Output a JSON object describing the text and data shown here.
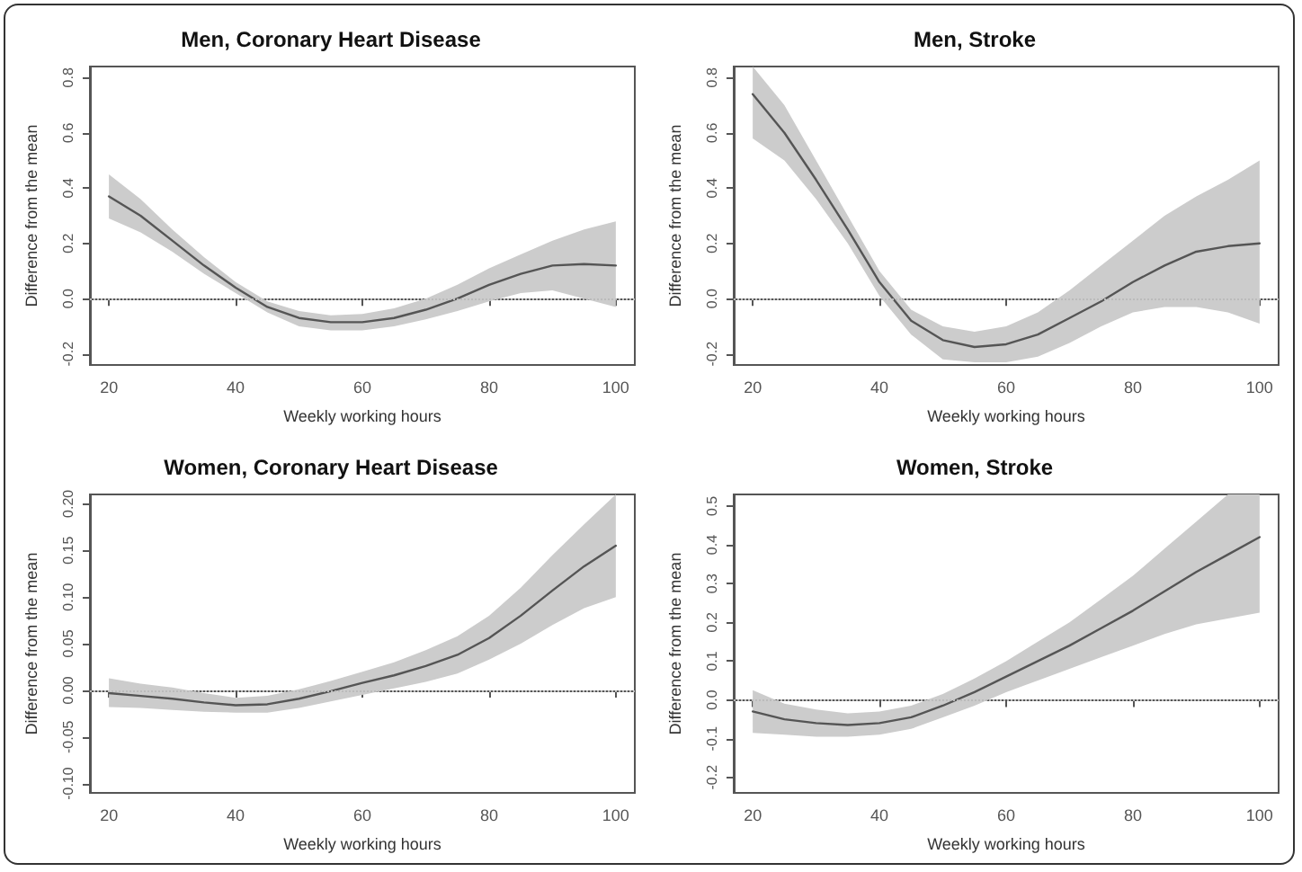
{
  "chart_data": [
    {
      "type": "line",
      "title": "Men, Coronary Heart Disease",
      "xlabel": "Weekly working hours",
      "ylabel": "Difference from the mean",
      "xlim": [
        17,
        103
      ],
      "xticks": [
        20,
        40,
        60,
        80,
        100
      ],
      "ylim": [
        -0.24,
        0.84
      ],
      "yticks": [
        {
          "value": -0.2,
          "label": "-0.2"
        },
        {
          "value": 0,
          "label": "0.0"
        },
        {
          "value": 0.2,
          "label": "0.2"
        },
        {
          "value": 0.4,
          "label": "0.4"
        },
        {
          "value": 0.6,
          "label": "0.6"
        },
        {
          "value": 0.8,
          "label": "0.8"
        }
      ],
      "x": [
        20,
        25,
        30,
        35,
        40,
        45,
        50,
        55,
        60,
        65,
        70,
        75,
        80,
        85,
        90,
        95,
        100
      ],
      "series": [
        {
          "color": "#555555",
          "values": [
            0.37,
            0.3,
            0.21,
            0.12,
            0.04,
            -0.03,
            -0.07,
            -0.085,
            -0.085,
            -0.07,
            -0.04,
            0.0,
            0.05,
            0.09,
            0.12,
            0.125,
            0.12
          ],
          "lower": [
            0.29,
            0.24,
            0.17,
            0.09,
            0.02,
            -0.05,
            -0.1,
            -0.115,
            -0.115,
            -0.1,
            -0.075,
            -0.045,
            -0.01,
            0.02,
            0.03,
            0.0,
            -0.03
          ],
          "upper": [
            0.45,
            0.36,
            0.25,
            0.15,
            0.06,
            -0.01,
            -0.045,
            -0.06,
            -0.055,
            -0.035,
            0.0,
            0.05,
            0.11,
            0.16,
            0.21,
            0.25,
            0.28
          ]
        }
      ],
      "ref_lines": [
        {
          "axis": "y",
          "value": 0,
          "color": "#bbbbbb",
          "line_style": "dotted"
        }
      ]
    },
    {
      "type": "line",
      "title": "Men, Stroke",
      "xlabel": "Weekly working hours",
      "ylabel": "Difference from the mean",
      "xlim": [
        17,
        103
      ],
      "xticks": [
        20,
        40,
        60,
        80,
        100
      ],
      "ylim": [
        -0.24,
        0.84
      ],
      "yticks": [
        {
          "value": -0.2,
          "label": "-0.2"
        },
        {
          "value": 0,
          "label": "0.0"
        },
        {
          "value": 0.2,
          "label": "0.2"
        },
        {
          "value": 0.4,
          "label": "0.4"
        },
        {
          "value": 0.6,
          "label": "0.6"
        },
        {
          "value": 0.8,
          "label": "0.8"
        }
      ],
      "x": [
        20,
        25,
        30,
        35,
        40,
        45,
        50,
        55,
        60,
        65,
        70,
        75,
        80,
        85,
        90,
        95,
        100
      ],
      "series": [
        {
          "color": "#555555",
          "values": [
            0.74,
            0.6,
            0.43,
            0.25,
            0.06,
            -0.08,
            -0.15,
            -0.175,
            -0.165,
            -0.13,
            -0.07,
            -0.01,
            0.06,
            0.12,
            0.17,
            0.19,
            0.2
          ],
          "lower": [
            0.58,
            0.5,
            0.36,
            0.2,
            0.01,
            -0.13,
            -0.22,
            -0.23,
            -0.23,
            -0.21,
            -0.16,
            -0.1,
            -0.05,
            -0.03,
            -0.03,
            -0.05,
            -0.09
          ],
          "upper": [
            0.84,
            0.7,
            0.5,
            0.3,
            0.1,
            -0.04,
            -0.1,
            -0.12,
            -0.1,
            -0.05,
            0.03,
            0.12,
            0.21,
            0.3,
            0.37,
            0.43,
            0.5
          ]
        }
      ],
      "ref_lines": [
        {
          "axis": "y",
          "value": 0,
          "color": "#bbbbbb",
          "line_style": "dotted"
        }
      ]
    },
    {
      "type": "line",
      "title": "Women, Coronary Heart Disease",
      "xlabel": "Weekly working hours",
      "ylabel": "Difference from the mean",
      "xlim": [
        17,
        103
      ],
      "xticks": [
        20,
        40,
        60,
        80,
        100
      ],
      "ylim": [
        -0.11,
        0.21
      ],
      "yticks": [
        {
          "value": -0.1,
          "label": "-0.10"
        },
        {
          "value": -0.05,
          "label": "-0.05"
        },
        {
          "value": 0,
          "label": "0.00"
        },
        {
          "value": 0.05,
          "label": "0.05"
        },
        {
          "value": 0.1,
          "label": "0.10"
        },
        {
          "value": 0.15,
          "label": "0.15"
        },
        {
          "value": 0.2,
          "label": "0.20"
        }
      ],
      "x": [
        20,
        25,
        30,
        35,
        40,
        45,
        50,
        55,
        60,
        65,
        70,
        75,
        80,
        85,
        90,
        95,
        100
      ],
      "series": [
        {
          "color": "#555555",
          "values": [
            -0.003,
            -0.006,
            -0.009,
            -0.013,
            -0.016,
            -0.015,
            -0.009,
            -0.001,
            0.008,
            0.016,
            0.026,
            0.038,
            0.056,
            0.08,
            0.107,
            0.133,
            0.155
          ],
          "lower": [
            -0.018,
            -0.019,
            -0.021,
            -0.023,
            -0.024,
            -0.024,
            -0.019,
            -0.012,
            -0.005,
            0.002,
            0.009,
            0.018,
            0.033,
            0.05,
            0.07,
            0.088,
            0.1
          ],
          "upper": [
            0.013,
            0.007,
            0.003,
            -0.003,
            -0.008,
            -0.006,
            0.001,
            0.01,
            0.02,
            0.03,
            0.043,
            0.058,
            0.08,
            0.11,
            0.145,
            0.178,
            0.21
          ]
        }
      ],
      "ref_lines": [
        {
          "axis": "y",
          "value": 0,
          "color": "#bbbbbb",
          "line_style": "dotted"
        }
      ]
    },
    {
      "type": "line",
      "title": "Women, Stroke",
      "xlabel": "Weekly working hours",
      "ylabel": "Difference from the mean",
      "xlim": [
        17,
        103
      ],
      "xticks": [
        20,
        40,
        60,
        80,
        100
      ],
      "ylim": [
        -0.24,
        0.53
      ],
      "yticks": [
        {
          "value": -0.2,
          "label": "-0.2"
        },
        {
          "value": -0.1,
          "label": "-0.1"
        },
        {
          "value": 0,
          "label": "0.0"
        },
        {
          "value": 0.1,
          "label": "0.1"
        },
        {
          "value": 0.2,
          "label": "0.2"
        },
        {
          "value": 0.3,
          "label": "0.3"
        },
        {
          "value": 0.4,
          "label": "0.4"
        },
        {
          "value": 0.5,
          "label": "0.5"
        }
      ],
      "x": [
        20,
        25,
        30,
        35,
        40,
        45,
        50,
        55,
        60,
        65,
        70,
        75,
        80,
        85,
        90,
        95,
        100
      ],
      "series": [
        {
          "color": "#555555",
          "values": [
            -0.03,
            -0.05,
            -0.06,
            -0.065,
            -0.06,
            -0.045,
            -0.015,
            0.02,
            0.06,
            0.1,
            0.14,
            0.185,
            0.23,
            0.28,
            0.33,
            0.375,
            0.42
          ],
          "lower": [
            -0.085,
            -0.09,
            -0.095,
            -0.095,
            -0.09,
            -0.075,
            -0.045,
            -0.015,
            0.02,
            0.05,
            0.08,
            0.11,
            0.14,
            0.17,
            0.195,
            0.21,
            0.225
          ],
          "upper": [
            0.025,
            -0.01,
            -0.025,
            -0.035,
            -0.03,
            -0.015,
            0.015,
            0.055,
            0.1,
            0.15,
            0.2,
            0.26,
            0.32,
            0.39,
            0.46,
            0.53,
            0.53
          ]
        }
      ],
      "ref_lines": [
        {
          "axis": "y",
          "value": 0,
          "color": "#bbbbbb",
          "line_style": "dotted"
        }
      ]
    }
  ]
}
